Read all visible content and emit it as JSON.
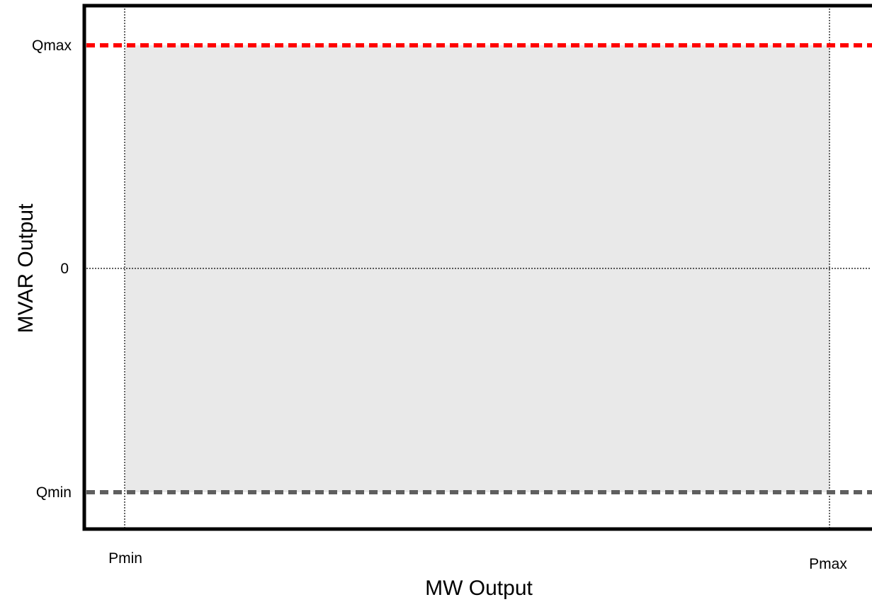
{
  "chart_data": {
    "type": "area",
    "title": "",
    "xlabel": "MW Output",
    "ylabel": "MVAR Output",
    "x_ticks": [
      "Pmin",
      "Pmax"
    ],
    "y_ticks": [
      "Qmax",
      "0",
      "Qmin"
    ],
    "region": {
      "x_from": "Pmin",
      "x_to": "Pmax",
      "y_from": "Qmin",
      "y_to": "Qmax",
      "fill_color": "#e9e9e9"
    },
    "limit_lines": [
      {
        "label": "Qmax",
        "color": "#ff0000",
        "style": "dashed"
      },
      {
        "label": "Qmin",
        "color": "#5f5f5f",
        "style": "dashed"
      }
    ],
    "reference_lines": [
      "Pmin",
      "Pmax",
      "0"
    ],
    "grid": false,
    "legend": "none"
  }
}
